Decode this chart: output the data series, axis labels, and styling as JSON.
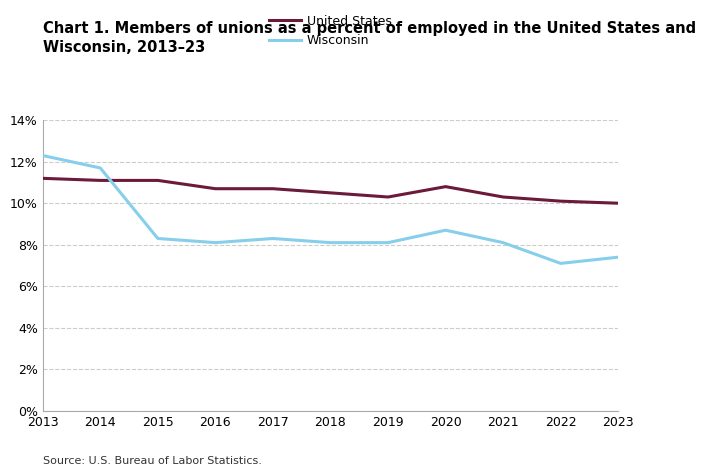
{
  "title": "Chart 1. Members of unions as a percent of employed in the United States and\nWisconsin, 2013–23",
  "years": [
    2013,
    2014,
    2015,
    2016,
    2017,
    2018,
    2019,
    2020,
    2021,
    2022,
    2023
  ],
  "us_values": [
    11.2,
    11.1,
    11.1,
    10.7,
    10.7,
    10.5,
    10.3,
    10.8,
    10.3,
    10.1,
    10.0
  ],
  "wi_values": [
    12.3,
    11.7,
    8.3,
    8.1,
    8.3,
    8.1,
    8.1,
    8.7,
    8.1,
    7.1,
    7.4
  ],
  "us_color": "#6b1a3a",
  "wi_color": "#87ceeb",
  "us_label": "United States",
  "wi_label": "Wisconsin",
  "ylim": [
    0,
    14
  ],
  "yticks": [
    0,
    2,
    4,
    6,
    8,
    10,
    12,
    14
  ],
  "source_text": "Source: U.S. Bureau of Labor Statistics.",
  "line_width": 2.2,
  "grid_color": "#cccccc",
  "background_color": "#ffffff",
  "title_fontsize": 10.5,
  "tick_fontsize": 9,
  "legend_fontsize": 9,
  "source_fontsize": 8
}
